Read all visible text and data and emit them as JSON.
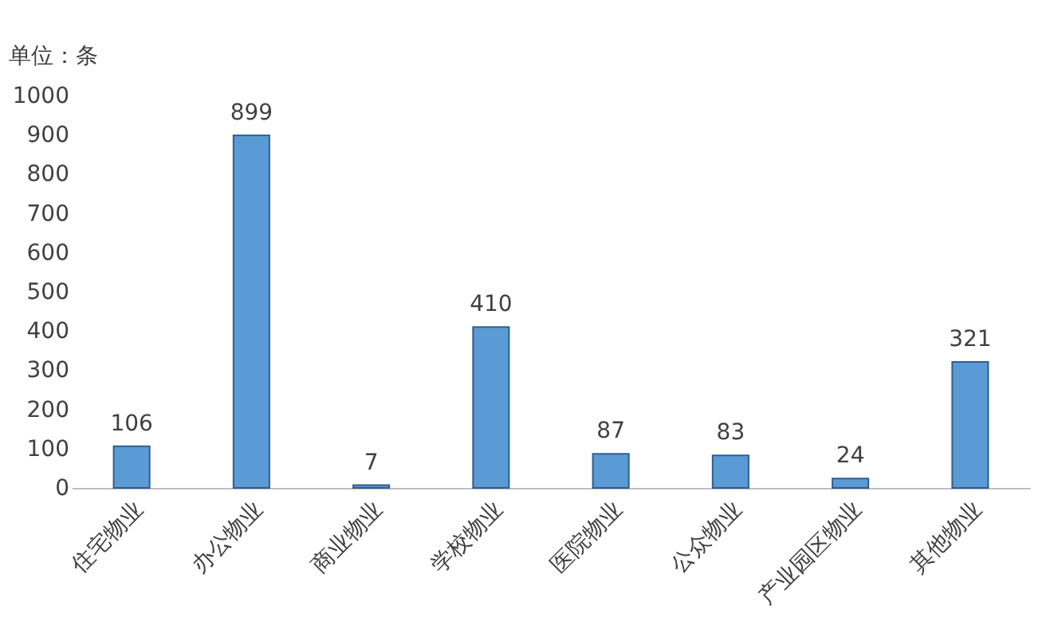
{
  "chart_data": {
    "type": "bar",
    "ylabel": "单位：条",
    "categories": [
      "住宅物业",
      "办公物业",
      "商业物业",
      "学校物业",
      "医院物业",
      "公众物业",
      "产业园区物业",
      "其他物业"
    ],
    "values": [
      106,
      899,
      7,
      410,
      87,
      83,
      24,
      321
    ],
    "color": "#5b9bd5",
    "ylim": [
      0,
      1000
    ],
    "yticks": [
      0,
      100,
      200,
      300,
      400,
      500,
      600,
      700,
      800,
      900,
      1000
    ],
    "grid": false,
    "data_labels": true
  }
}
